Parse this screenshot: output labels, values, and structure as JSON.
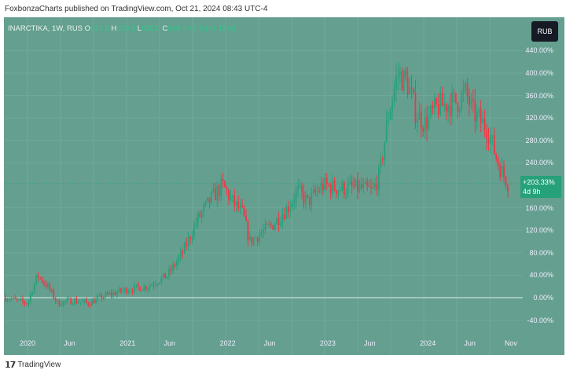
{
  "header": {
    "published": "FoxbonzaCharts published on TradingView.com, Oct 21, 2024 08:43 UTC-4"
  },
  "legend": {
    "symbol": "INARCTIKA, 1W, RUS",
    "o_label": "O",
    "o": "615.5",
    "h_label": "H",
    "h": "623.5",
    "l_label": "L",
    "l": "615.0",
    "c_label": "C",
    "c": "618.0",
    "change": "+7.0 (+1.15%)"
  },
  "currency": "RUB",
  "price_tag": {
    "value": "+203.33%",
    "countdown": "4d 9h"
  },
  "footer": {
    "logo_text": "TradingView"
  },
  "colors": {
    "background": "#659f8f",
    "up": "#26a17a",
    "down": "#f23645"
  },
  "chart_data": {
    "type": "candlestick",
    "y_ticks": [
      "440.00%",
      "400.00%",
      "360.00%",
      "320.00%",
      "280.00%",
      "240.00%",
      "160.00%",
      "120.00%",
      "80.00%",
      "40.00%",
      "0.00%",
      "-40.00%"
    ],
    "y_tick_values": [
      440,
      400,
      360,
      320,
      280,
      240,
      160,
      120,
      80,
      40,
      0,
      -40
    ],
    "x_ticks": [
      "2020",
      "Jun",
      "2021",
      "Jun",
      "2022",
      "Jun",
      "2023",
      "Jun",
      "2024",
      "Jun",
      "Nov"
    ],
    "x_tick_dates": [
      2020.0,
      2020.42,
      2021.0,
      2021.42,
      2022.0,
      2022.42,
      2023.0,
      2023.42,
      2024.0,
      2024.42,
      2024.83
    ],
    "ylim": [
      -50,
      460
    ],
    "keypoints": [
      [
        2019.78,
        0
      ],
      [
        2020.0,
        -10
      ],
      [
        2020.1,
        40
      ],
      [
        2020.2,
        20
      ],
      [
        2020.3,
        -10
      ],
      [
        2020.45,
        -5
      ],
      [
        2020.6,
        -10
      ],
      [
        2020.8,
        5
      ],
      [
        2021.0,
        15
      ],
      [
        2021.2,
        20
      ],
      [
        2021.4,
        40
      ],
      [
        2021.55,
        80
      ],
      [
        2021.7,
        140
      ],
      [
        2021.85,
        180
      ],
      [
        2021.95,
        200
      ],
      [
        2022.05,
        170
      ],
      [
        2022.15,
        150
      ],
      [
        2022.22,
        100
      ],
      [
        2022.3,
        110
      ],
      [
        2022.45,
        130
      ],
      [
        2022.6,
        160
      ],
      [
        2022.7,
        190
      ],
      [
        2022.8,
        170
      ],
      [
        2022.95,
        200
      ],
      [
        2023.1,
        195
      ],
      [
        2023.3,
        195
      ],
      [
        2023.45,
        190
      ],
      [
        2023.52,
        220
      ],
      [
        2023.6,
        320
      ],
      [
        2023.7,
        400
      ],
      [
        2023.8,
        380
      ],
      [
        2023.88,
        330
      ],
      [
        2023.97,
        310
      ],
      [
        2024.1,
        340
      ],
      [
        2024.3,
        350
      ],
      [
        2024.38,
        365
      ],
      [
        2024.45,
        330
      ],
      [
        2024.6,
        300
      ],
      [
        2024.7,
        240
      ],
      [
        2024.8,
        203
      ]
    ]
  }
}
